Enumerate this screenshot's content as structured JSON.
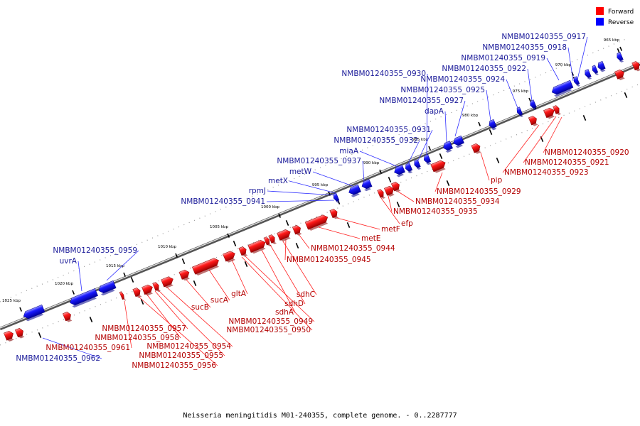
{
  "caption": "Neisseria meningitidis M01-240355, complete genome. - 0..2287777",
  "legend": {
    "forward_label": "Forward",
    "reverse_label": "Reverse",
    "forward_color": "#ff0000",
    "reverse_color": "#0000ff"
  },
  "colors": {
    "forward_label": "#b30000",
    "reverse_label": "#1a1a99"
  },
  "ticks": [
    "965 kbp",
    "970 kbp",
    "975 kbp",
    "980 kbp",
    "985 kbp",
    "990 kbp",
    "995 kbp",
    "1000 kbp",
    "1005 kbp",
    "1010 kbp",
    "1015 kbp",
    "1020 kbp",
    "1025 kbp"
  ],
  "genes": {
    "reverse": [
      "NMBM01240355_0917",
      "NMBM01240355_0918",
      "NMBM01240355_0919",
      "NMBM01240355_0922",
      "NMBM01240355_0924",
      "NMBM01240355_0925",
      "NMBM01240355_0927",
      "NMBM01240355_0930",
      "dapA",
      "NMBM01240355_0931",
      "NMBM01240355_0932",
      "miaA",
      "NMBM01240355_0937",
      "metW",
      "metX",
      "rpmJ",
      "NMBM01240355_0941",
      "NMBM01240355_0959",
      "uvrA",
      "NMBM01240355_0962"
    ],
    "forward": [
      "NMBM01240355_0920",
      "NMBM01240355_0921",
      "NMBM01240355_0923",
      "pip",
      "NMBM01240355_0929",
      "NMBM01240355_0934",
      "NMBM01240355_0935",
      "efp",
      "metF",
      "metE",
      "NMBM01240355_0944",
      "NMBM01240355_0945",
      "sdhC",
      "sdhD",
      "sdhA",
      "NMBM01240355_0949",
      "NMBM01240355_0950",
      "gltA",
      "sucA",
      "sucB",
      "NMBM01240355_0957",
      "NMBM01240355_0958",
      "NMBM01240355_0961",
      "NMBM01240355_0954",
      "NMBM01240355_0955",
      "NMBM01240355_0956"
    ]
  }
}
